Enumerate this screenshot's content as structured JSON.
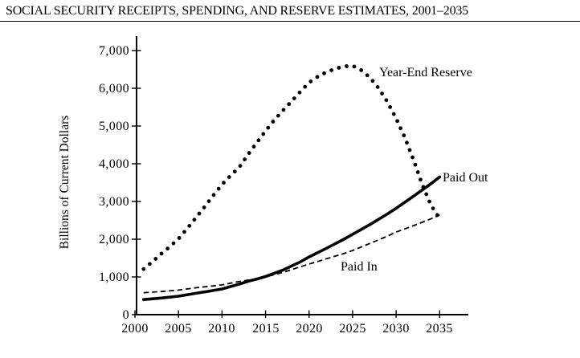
{
  "page": {
    "title": "SOCIAL SECURITY RECEIPTS, SPENDING, AND RESERVE ESTIMATES, 2001–2035"
  },
  "chart_data": {
    "type": "line",
    "title": "SOCIAL SECURITY RECEIPTS, SPENDING, AND RESERVE ESTIMATES, 2001–2035",
    "ylabel": "Billions of Current Dollars",
    "xlabel": "",
    "units": "billions of current dollars",
    "grid": false,
    "legend_position": "inline-annotations",
    "xlim": [
      2000,
      2038
    ],
    "ylim": [
      0,
      7400
    ],
    "x_ticks": [
      2000,
      2005,
      2010,
      2015,
      2020,
      2025,
      2030,
      2035
    ],
    "x_tick_labels": [
      "2000",
      "2005",
      "2010",
      "2015",
      "2020",
      "2025",
      "2030",
      "2035"
    ],
    "y_ticks": [
      0,
      1000,
      2000,
      3000,
      4000,
      5000,
      6000,
      7000
    ],
    "y_tick_labels": [
      "0",
      "1,000",
      "2,000",
      "3,000",
      "4,000",
      "5,000",
      "6,000",
      "7,000"
    ],
    "series": [
      {
        "name": "Year-End Reserve",
        "line_style": "dotted",
        "color": "#000000",
        "points": [
          [
            2001,
            1210
          ],
          [
            2002,
            1400
          ],
          [
            2003,
            1610
          ],
          [
            2004,
            1800
          ],
          [
            2005,
            2010
          ],
          [
            2006,
            2280
          ],
          [
            2007,
            2570
          ],
          [
            2008,
            2860
          ],
          [
            2009,
            3160
          ],
          [
            2010,
            3450
          ],
          [
            2011,
            3690
          ],
          [
            2012,
            3910
          ],
          [
            2013,
            4250
          ],
          [
            2014,
            4560
          ],
          [
            2015,
            4870
          ],
          [
            2016,
            5160
          ],
          [
            2017,
            5410
          ],
          [
            2018,
            5660
          ],
          [
            2019,
            5910
          ],
          [
            2020,
            6150
          ],
          [
            2021,
            6310
          ],
          [
            2022,
            6430
          ],
          [
            2023,
            6520
          ],
          [
            2024,
            6580
          ],
          [
            2025,
            6600
          ],
          [
            2026,
            6480
          ],
          [
            2027,
            6280
          ],
          [
            2028,
            6000
          ],
          [
            2029,
            5640
          ],
          [
            2030,
            5200
          ],
          [
            2031,
            4700
          ],
          [
            2032,
            4100
          ],
          [
            2033,
            3450
          ],
          [
            2034,
            2900
          ],
          [
            2035,
            2550
          ]
        ]
      },
      {
        "name": "Paid Out",
        "line_style": "solid-bold",
        "color": "#000000",
        "points": [
          [
            2001,
            400
          ],
          [
            2003,
            440
          ],
          [
            2005,
            490
          ],
          [
            2007,
            565
          ],
          [
            2009,
            640
          ],
          [
            2010,
            680
          ],
          [
            2012,
            810
          ],
          [
            2013,
            885
          ],
          [
            2014,
            945
          ],
          [
            2015,
            1010
          ],
          [
            2017,
            1180
          ],
          [
            2019,
            1400
          ],
          [
            2020,
            1530
          ],
          [
            2022,
            1760
          ],
          [
            2024,
            2000
          ],
          [
            2025,
            2130
          ],
          [
            2027,
            2390
          ],
          [
            2029,
            2670
          ],
          [
            2030,
            2820
          ],
          [
            2032,
            3140
          ],
          [
            2034,
            3470
          ],
          [
            2035,
            3650
          ]
        ]
      },
      {
        "name": "Paid In",
        "line_style": "dashed",
        "color": "#000000",
        "points": [
          [
            2001,
            580
          ],
          [
            2003,
            612
          ],
          [
            2005,
            650
          ],
          [
            2007,
            712
          ],
          [
            2009,
            762
          ],
          [
            2010,
            790
          ],
          [
            2012,
            880
          ],
          [
            2013,
            915
          ],
          [
            2014,
            950
          ],
          [
            2015,
            1000
          ],
          [
            2017,
            1120
          ],
          [
            2019,
            1270
          ],
          [
            2020,
            1340
          ],
          [
            2022,
            1480
          ],
          [
            2024,
            1620
          ],
          [
            2025,
            1700
          ],
          [
            2027,
            1890
          ],
          [
            2029,
            2080
          ],
          [
            2030,
            2190
          ],
          [
            2032,
            2360
          ],
          [
            2034,
            2540
          ],
          [
            2035,
            2640
          ]
        ]
      }
    ],
    "annotations": [
      {
        "text": "Year-End Reserve",
        "near": "dotted series, right of peak"
      },
      {
        "text": "Paid Out",
        "near": "end of solid series"
      },
      {
        "text": "Paid In",
        "near": "below dashed series mid-right"
      }
    ]
  }
}
